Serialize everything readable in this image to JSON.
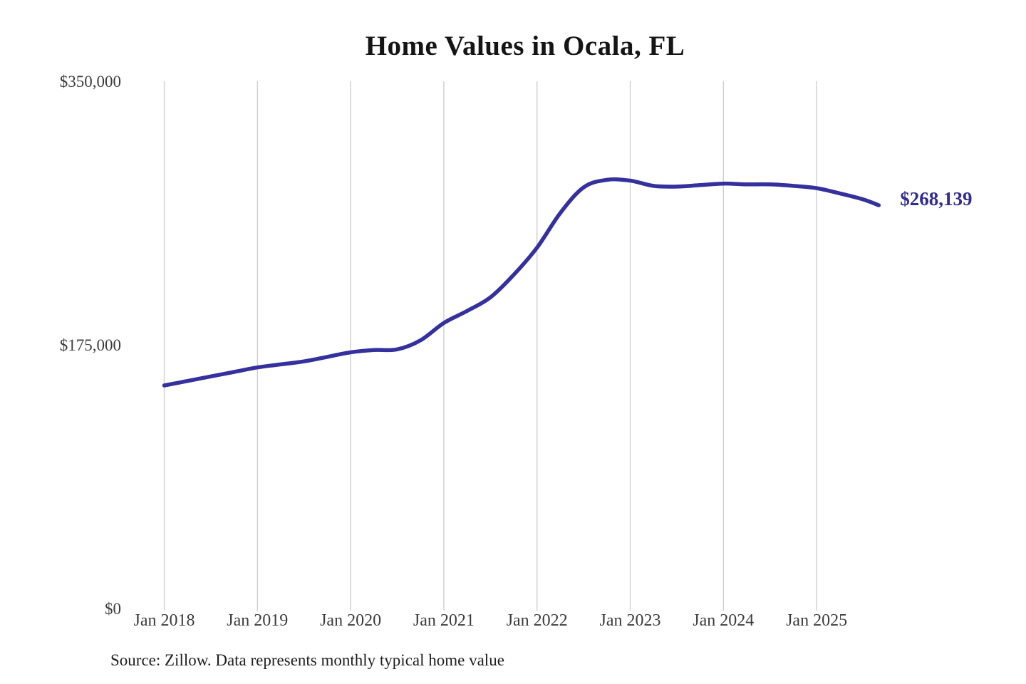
{
  "page": {
    "background_color": "#ffffff"
  },
  "chart": {
    "title": "Home Values in Ocala, FL",
    "source_note": "Source: Zillow. Data represents monthly typical home value",
    "colors": {
      "line": "#34309e",
      "grid": "#cccccc",
      "axis_text": "#3c3c3c",
      "title_text": "#151515",
      "end_label_text": "#312b94",
      "source_text": "#1e1e1e"
    }
  },
  "chart_data": {
    "type": "line",
    "title": "Home Values in Ocala, FL",
    "xlabel": "",
    "ylabel": "",
    "ylim": [
      0,
      350000
    ],
    "ytick_values": [
      0,
      175000,
      350000
    ],
    "ytick_labels": [
      "$0",
      "$175,000",
      "$350,000"
    ],
    "xtick_labels": [
      "Jan 2018",
      "Jan 2019",
      "Jan 2020",
      "Jan 2021",
      "Jan 2022",
      "Jan 2023",
      "Jan 2024",
      "Jan 2025"
    ],
    "grid": "vertical-only",
    "legend": "none",
    "latest_value": 268139,
    "latest_value_label": "$268,139",
    "series": [
      {
        "name": "Monthly typical home value (USD)",
        "x": [
          "Jan 2018",
          "Apr 2018",
          "Jul 2018",
          "Oct 2018",
          "Jan 2019",
          "Apr 2019",
          "Jul 2019",
          "Oct 2019",
          "Jan 2020",
          "Apr 2020",
          "Jul 2020",
          "Oct 2020",
          "Jan 2021",
          "Apr 2021",
          "Jul 2021",
          "Oct 2021",
          "Jan 2022",
          "Apr 2022",
          "Jul 2022",
          "Oct 2022",
          "Jan 2023",
          "Apr 2023",
          "Jul 2023",
          "Oct 2023",
          "Jan 2024",
          "Apr 2024",
          "Jul 2024",
          "Oct 2024",
          "Jan 2025",
          "Apr 2025",
          "Jul 2025",
          "Sep 2025"
        ],
        "values": [
          148500,
          151500,
          154500,
          157500,
          160500,
          162500,
          164500,
          167500,
          170500,
          172000,
          172500,
          178500,
          190000,
          198000,
          207000,
          222000,
          240000,
          263000,
          280000,
          285000,
          284500,
          281000,
          280500,
          281500,
          282500,
          282000,
          282000,
          281000,
          279500,
          276000,
          272000,
          268139
        ]
      }
    ]
  }
}
